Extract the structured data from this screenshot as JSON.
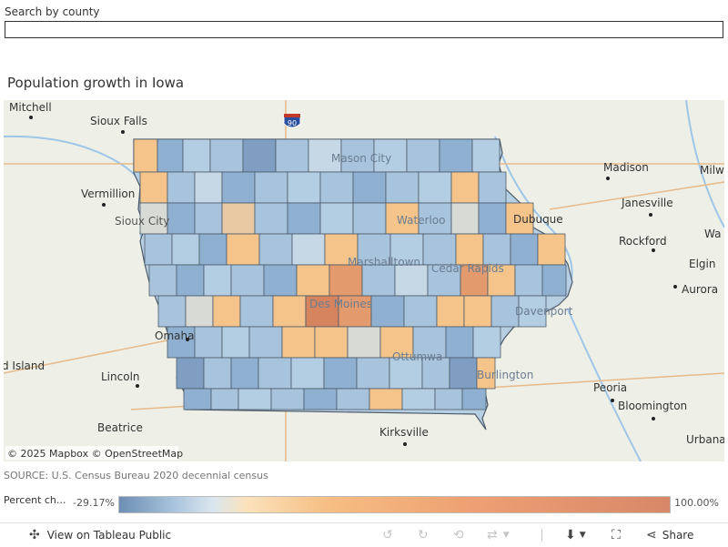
{
  "search": {
    "label": "Search by county",
    "value": "",
    "placeholder": ""
  },
  "title": "Population growth in Iowa",
  "map": {
    "attribution": "© 2025 Mapbox © OpenStreetMap",
    "highway_shield": "90",
    "places_outside": [
      "Mitchell",
      "Sioux Falls",
      "Vermillion",
      "Sioux City",
      "Madison",
      "Milw",
      "Janesville",
      "Rockford",
      "Wa",
      "Elgin",
      "Aurora",
      "Omaha",
      "d Island",
      "Lincoln",
      "Beatrice",
      "Kirksville",
      "Peoria",
      "Bloomington",
      "Urbana"
    ],
    "places_inside": [
      "Mason City",
      "Waterloo",
      "Dubuque",
      "Marshalltown",
      "Cedar Rapids",
      "Des Moines",
      "Davenport",
      "Ottumwa",
      "Burlington"
    ],
    "colors": {
      "decline_strong": "#7f9ec2",
      "decline": "#a8c4dc",
      "flat": "#d8dad5",
      "growth": "#f5c48a",
      "growth_strong": "#e39a6c",
      "max": "#d6845e"
    }
  },
  "source": "SOURCE: U.S. Census Bureau 2020 decennial census",
  "legend": {
    "label": "Percent ch...",
    "min": "-29.17%",
    "max": "100.00%"
  },
  "toolbar": {
    "view_label": "View on Tableau Public",
    "share_label": "Share"
  }
}
